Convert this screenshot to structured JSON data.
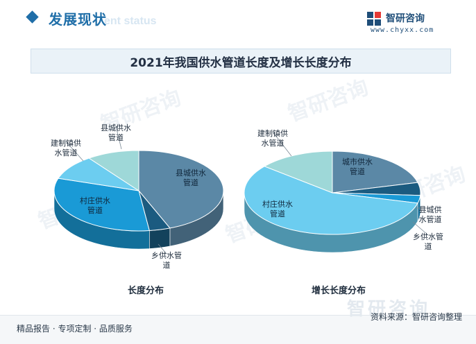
{
  "header": {
    "section_title": "发展现状",
    "section_title_en": "ent status",
    "brand_name": "智研咨询",
    "brand_url": "www.chyxx.com"
  },
  "banner_title": "2021年我国供水管道长度及增长长度分布",
  "watermark_text": "智研咨询",
  "chart_data": [
    {
      "type": "pie",
      "title": "长度分布",
      "categories": [
        "县城供水管道",
        "乡供水管道",
        "村庄供水管道",
        "建制镇供水管道",
        "县城供水管道"
      ],
      "labels": [
        "县城供水\n管道",
        "乡供水管\n道",
        "村庄供水\n管道",
        "建制镇供\n水管道",
        "县城供水\n管道"
      ],
      "values": [
        44,
        4,
        32,
        10,
        10
      ],
      "colors": [
        "#5b88a6",
        "#1b5b80",
        "#1a9ad6",
        "#6ccdf0",
        "#9ed8d8"
      ]
    },
    {
      "type": "pie",
      "title": "增长长度分布",
      "categories": [
        "城市供水管道",
        "县城供水管道",
        "乡供水管道",
        "村庄供水管道",
        "建制镇供水管道"
      ],
      "labels": [
        "城市供水\n管道",
        "县城供\n水管道",
        "乡供水管\n道",
        "村庄供水\n管道",
        "建制镇供\n水管道"
      ],
      "values": [
        21,
        5,
        3,
        57,
        14
      ],
      "colors": [
        "#5b88a6",
        "#1b5b80",
        "#1a9ad6",
        "#6ccdf0",
        "#9ed8d8"
      ]
    }
  ],
  "footer": {
    "left_text": "精品报告 · 专项定制 · 品质服务",
    "right_text": "资料来源：智研咨询整理"
  }
}
